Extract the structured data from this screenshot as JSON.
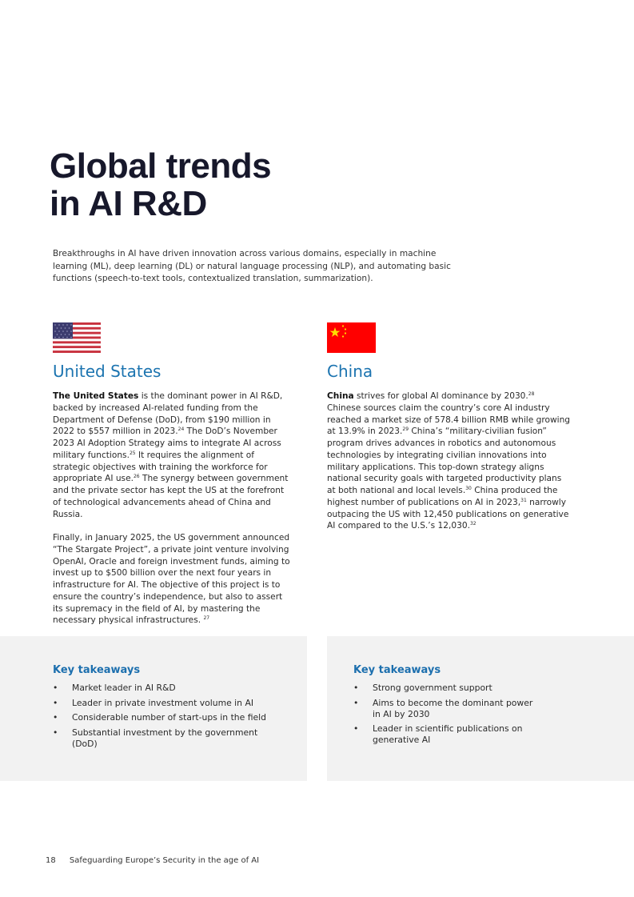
{
  "title": {
    "line1": "Global trends",
    "line2": "in AI R&D"
  },
  "intro": "Breakthroughs in AI have driven innovation across various domains, especially in machine learning (ML), deep learning (DL) or natural language processing (NLP), and automating basic functions (speech-to-text tools, contextualized translation, summarization).",
  "us": {
    "flag_icon": "us-flag-icon",
    "heading": "United States",
    "p1": {
      "lead": "The United States",
      "t1": " is the dominant power in AI R&D, backed by increased AI-related funding from the Department of Defense (DoD), from $190 million in 2022 to $557 million in 2023.",
      "s1": "24",
      "t2": " The DoD’s November 2023 AI Adoption Strategy aims to integrate AI across military functions.",
      "s2": "25",
      "t3": " It requires the alignment of strategic objectives with training the workforce for appropriate AI use.",
      "s3": "26",
      "t4": " The synergy between government and the private sector has kept the US at the forefront of technological advancements ahead of China and Russia."
    },
    "p2": {
      "t1": "Finally, in January 2025, the US government announced “The Stargate Project”, a private joint venture involving OpenAI, Oracle and foreign investment funds, aiming to invest up to $500 billion over the next four years in infrastructure for AI. The objective of this project is to ensure the country’s independence, but also to assert its supremacy in the field of AI, by mastering the necessary physical infrastructures. ",
      "s1": "27"
    },
    "takeaways": {
      "heading": "Key takeaways",
      "items": [
        "Market leader in AI R&D",
        "Leader in private investment volume in AI",
        "Considerable number of start-ups in the field",
        "Substantial investment by the government (DoD)"
      ]
    }
  },
  "china": {
    "flag_icon": "china-flag-icon",
    "heading": "China",
    "p1": {
      "lead": "China",
      "t1": " strives for global AI dominance by 2030.",
      "s1": "28",
      "t2": " Chinese sources claim the country’s core AI industry reached a market size of 578.4 billion RMB while growing at 13.9% in 2023.",
      "s2": "29",
      "t3": " China’s “military-civilian fusion” program drives advances in robotics and autonomous technologies by integrating civilian innovations into military applications. This top-down strategy aligns national security goals with targeted productivity plans at both national and local levels.",
      "s3": "30",
      "t4": " China produced the highest number of publications on AI in 2023,",
      "s4": "31",
      "t5": " narrowly outpacing the US with 12,450 publications on generative AI compared to the U.S.’s 12,030.",
      "s5": "32"
    },
    "takeaways": {
      "heading": "Key takeaways",
      "items": [
        "Strong government support",
        "Aims to become the dominant power in AI by 2030",
        "Leader in scientific publications on generative AI"
      ]
    }
  },
  "footer": {
    "page_number": "18",
    "publication": "Safeguarding Europe’s Security in the age of AI"
  },
  "colors": {
    "accent": "#1c74b0",
    "title": "#17182b",
    "box_bg": "#f2f2f2"
  }
}
